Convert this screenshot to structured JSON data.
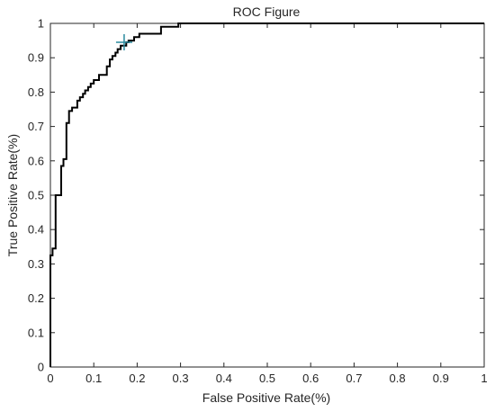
{
  "chart_data": {
    "type": "line",
    "title": "ROC Figure",
    "xlabel": "False Positive Rate(%)",
    "ylabel": "True Positive Rate(%)",
    "xlim": [
      0,
      1
    ],
    "ylim": [
      0,
      1
    ],
    "xticks": [
      "0",
      "0.1",
      "0.2",
      "0.3",
      "0.4",
      "0.5",
      "0.6",
      "0.7",
      "0.8",
      "0.9",
      "1"
    ],
    "yticks": [
      "0",
      "0.1",
      "0.2",
      "0.3",
      "0.4",
      "0.5",
      "0.6",
      "0.7",
      "0.8",
      "0.9",
      "1"
    ],
    "grid": false,
    "colors": {
      "curve": "#000000",
      "marker": "#2a8a9e",
      "axes": "#262626"
    },
    "series": [
      {
        "values": [
          [
            0,
            0
          ],
          [
            0,
            0.325
          ],
          [
            0.005,
            0.325
          ],
          [
            0.005,
            0.345
          ],
          [
            0.012,
            0.345
          ],
          [
            0.012,
            0.5
          ],
          [
            0.025,
            0.5
          ],
          [
            0.025,
            0.585
          ],
          [
            0.03,
            0.585
          ],
          [
            0.03,
            0.605
          ],
          [
            0.037,
            0.605
          ],
          [
            0.037,
            0.71
          ],
          [
            0.043,
            0.71
          ],
          [
            0.043,
            0.745
          ],
          [
            0.05,
            0.745
          ],
          [
            0.05,
            0.755
          ],
          [
            0.062,
            0.755
          ],
          [
            0.062,
            0.775
          ],
          [
            0.068,
            0.775
          ],
          [
            0.068,
            0.785
          ],
          [
            0.075,
            0.785
          ],
          [
            0.075,
            0.795
          ],
          [
            0.08,
            0.795
          ],
          [
            0.08,
            0.805
          ],
          [
            0.087,
            0.805
          ],
          [
            0.087,
            0.815
          ],
          [
            0.093,
            0.815
          ],
          [
            0.093,
            0.825
          ],
          [
            0.1,
            0.825
          ],
          [
            0.1,
            0.835
          ],
          [
            0.112,
            0.835
          ],
          [
            0.112,
            0.85
          ],
          [
            0.13,
            0.85
          ],
          [
            0.13,
            0.875
          ],
          [
            0.137,
            0.875
          ],
          [
            0.137,
            0.895
          ],
          [
            0.143,
            0.895
          ],
          [
            0.143,
            0.905
          ],
          [
            0.15,
            0.905
          ],
          [
            0.15,
            0.915
          ],
          [
            0.155,
            0.915
          ],
          [
            0.155,
            0.925
          ],
          [
            0.162,
            0.925
          ],
          [
            0.162,
            0.935
          ],
          [
            0.175,
            0.935
          ],
          [
            0.175,
            0.945
          ],
          [
            0.18,
            0.945
          ],
          [
            0.18,
            0.95
          ],
          [
            0.193,
            0.95
          ],
          [
            0.193,
            0.96
          ],
          [
            0.205,
            0.96
          ],
          [
            0.205,
            0.97
          ],
          [
            0.255,
            0.97
          ],
          [
            0.255,
            0.99
          ],
          [
            0.295,
            0.99
          ],
          [
            0.295,
            1.0
          ],
          [
            1.0,
            1.0
          ]
        ]
      }
    ],
    "marker": {
      "x": 0.17,
      "y": 0.945,
      "symbol": "+"
    }
  }
}
